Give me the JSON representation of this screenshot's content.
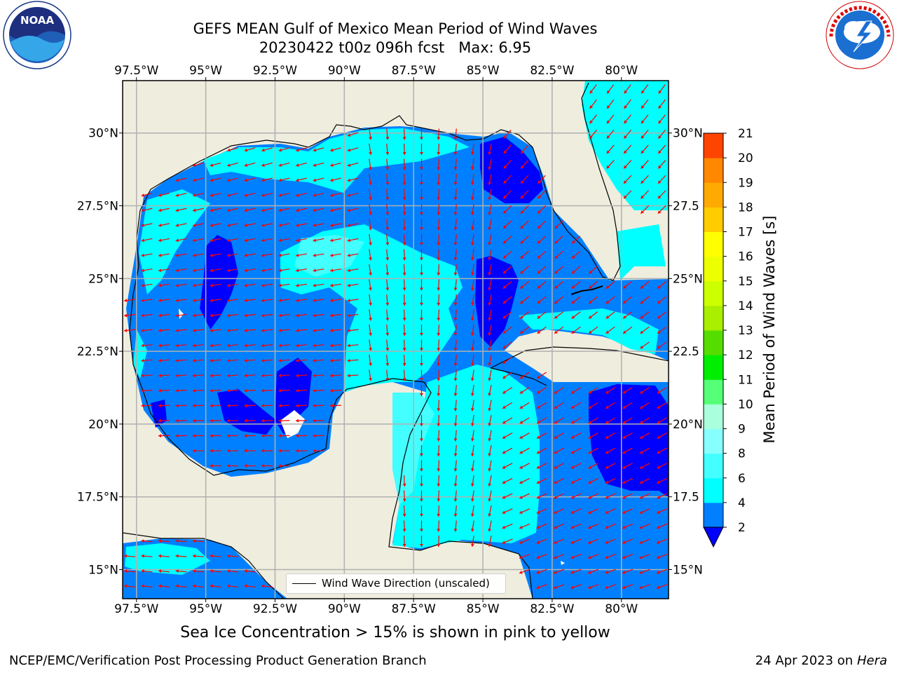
{
  "header": {
    "title_line1": "GEFS MEAN Gulf of Mexico Mean Period of Wind Waves",
    "title_line2": "20230422 t00z 096h fcst   Max: 6.95"
  },
  "logos": {
    "left": {
      "name": "noaa-logo",
      "text": "NOAA",
      "ring_text": "NATIONAL OCEANIC AND ATMOSPHERIC ADMINISTRATION · U.S. DEPARTMENT OF COMMERCE"
    },
    "right": {
      "name": "nws-logo",
      "ring_text": "NATIONAL WEATHER SERVICE"
    }
  },
  "map": {
    "lon_ticks": [
      "97.5°W",
      "95°W",
      "92.5°W",
      "90°W",
      "87.5°W",
      "85°W",
      "82.5°W",
      "80°W"
    ],
    "lon_values": [
      -97.5,
      -95,
      -92.5,
      -90,
      -87.5,
      -85,
      -82.5,
      -80
    ],
    "lat_ticks": [
      "30°N",
      "27.5°N",
      "25°N",
      "22.5°N",
      "20°N",
      "17.5°N",
      "15°N"
    ],
    "lat_values": [
      30,
      27.5,
      25,
      22.5,
      20,
      17.5,
      15
    ],
    "right_lat_ticks": [
      "30°N",
      "27.5",
      "25°N",
      "22.5",
      "20°N",
      "17.5",
      "15°N"
    ],
    "lon_range": [
      -98,
      -78.3
    ],
    "lat_range": [
      14,
      31.8
    ],
    "grid": true,
    "land_color": "#efedde",
    "arrow_color": "#ff0000",
    "wind_direction_general": "southward-to-westward",
    "legend": {
      "label": "Wind Wave Direction (unscaled)"
    }
  },
  "colorbar": {
    "label": "Mean Period of Wind Waves [s]",
    "ticks": [
      "2",
      "4",
      "6",
      "8",
      "9",
      "10",
      "11",
      "12",
      "13",
      "14",
      "15",
      "16",
      "17",
      "18",
      "19",
      "20",
      "21"
    ],
    "levels": [
      2,
      4,
      6,
      8,
      9,
      10,
      11,
      12,
      13,
      14,
      15,
      16,
      17,
      18,
      19,
      20,
      21
    ],
    "colors": [
      "#0080ff",
      "#00ffff",
      "#44ffff",
      "#88ffff",
      "#aaffdd",
      "#55ff77",
      "#00ee00",
      "#55dd00",
      "#aaee00",
      "#ccff00",
      "#eeff00",
      "#ffff00",
      "#ffcc00",
      "#ffaa00",
      "#ff8800",
      "#ff4400",
      "#ff0000"
    ],
    "under_color": "#0000ff"
  },
  "footer": {
    "note": "Sea Ice Concentration > 15% is shown in pink to yellow",
    "left": "NCEP/EMC/Verification Post Processing Product Generation Branch",
    "right_prefix": "24 Apr 2023 on ",
    "right_host": "Hera"
  }
}
